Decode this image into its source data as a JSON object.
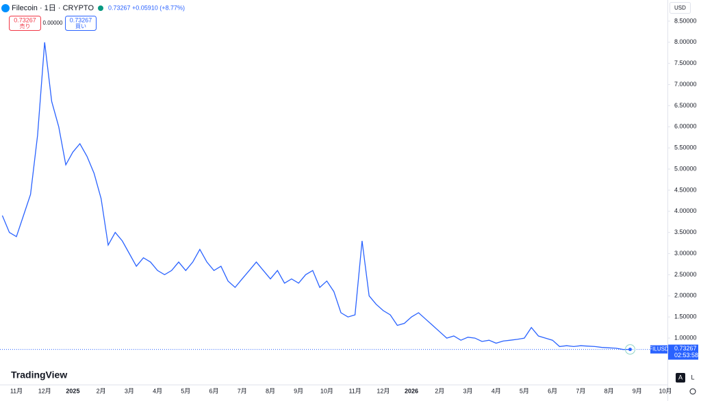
{
  "header": {
    "symbol": "Filecoin · 1日 · CRYPTO",
    "last": "0.73267",
    "change": "+0.05910 (+8.77%)",
    "sell_price": "0.73267",
    "sell_label": "売り",
    "spread": "0.00000",
    "buy_price": "0.73267",
    "buy_label": "買い",
    "currency": "USD",
    "ticker": "FILUSD",
    "price_tag": "0.73267",
    "countdown": "02:53:58",
    "logo": "TradingView",
    "auto_button": "A",
    "log_button": "L"
  },
  "chart_data": {
    "type": "line",
    "color": "#2962ff",
    "categories": [
      null,
      null,
      "11月",
      null,
      null,
      null,
      "12月",
      null,
      null,
      null,
      "2025",
      null,
      null,
      null,
      "2月",
      null,
      null,
      null,
      "3月",
      null,
      null,
      null,
      "4月",
      null,
      null,
      null,
      "5月",
      null,
      null,
      null,
      "6月",
      null,
      null,
      null,
      "7月",
      null,
      null,
      null,
      "8月",
      null,
      null,
      null,
      "9月",
      null,
      null,
      null,
      "10月",
      null,
      null,
      null,
      "11月",
      null,
      null,
      null,
      "12月",
      null,
      null,
      null,
      "2026",
      null,
      null,
      null,
      "2月",
      null,
      null,
      null,
      "3月",
      null,
      null,
      null,
      "4月",
      null,
      null,
      null,
      "5月",
      null,
      null,
      null,
      "6月",
      null,
      null,
      null,
      "7月",
      null,
      null,
      null,
      "8月",
      null,
      null,
      null,
      "9月",
      null,
      null,
      null,
      "10月"
    ],
    "values": [
      3.9,
      3.5,
      3.4,
      3.9,
      4.4,
      5.8,
      8.0,
      6.6,
      6.0,
      5.1,
      5.4,
      5.6,
      5.3,
      4.9,
      4.3,
      3.2,
      3.5,
      3.3,
      3.0,
      2.7,
      2.9,
      2.8,
      2.6,
      2.5,
      2.6,
      2.8,
      2.6,
      2.8,
      3.1,
      2.8,
      2.6,
      2.7,
      2.35,
      2.2,
      2.4,
      2.6,
      2.8,
      2.6,
      2.4,
      2.6,
      2.3,
      2.4,
      2.3,
      2.5,
      2.6,
      2.2,
      2.35,
      2.1,
      1.6,
      1.5,
      1.55,
      3.3,
      2.0,
      1.8,
      1.65,
      1.55,
      1.3,
      1.35,
      1.5,
      1.6,
      1.45,
      1.3,
      1.15,
      1.0,
      1.05,
      0.95,
      1.02,
      1.0,
      0.92,
      0.95,
      0.88,
      0.93,
      0.95,
      0.97,
      1.0,
      1.25,
      1.05,
      1.0,
      0.95,
      0.8,
      0.82,
      0.8,
      0.82,
      0.81,
      0.8,
      0.78,
      0.77,
      0.76,
      0.73,
      0.73267,
      null,
      null,
      null,
      null,
      null
    ],
    "ylim": [
      -0.1,
      9.0
    ],
    "yticks": [
      {
        "value": 1,
        "label": "1.00000"
      },
      {
        "value": 1.5,
        "label": "1.50000"
      },
      {
        "value": 2,
        "label": "2.00000"
      },
      {
        "value": 2.5,
        "label": "2.50000"
      },
      {
        "value": 3,
        "label": "3.00000"
      },
      {
        "value": 3.5,
        "label": "3.50000"
      },
      {
        "value": 4,
        "label": "4.00000"
      },
      {
        "value": 4.5,
        "label": "4.50000"
      },
      {
        "value": 5,
        "label": "5.00000"
      },
      {
        "value": 5.5,
        "label": "5.50000"
      },
      {
        "value": 6,
        "label": "6.00000"
      },
      {
        "value": 6.5,
        "label": "6.50000"
      },
      {
        "value": 7,
        "label": "7.00000"
      },
      {
        "value": 7.5,
        "label": "7.50000"
      },
      {
        "value": 8,
        "label": "8.00000"
      },
      {
        "value": 8.5,
        "label": "8.50000"
      }
    ],
    "last_price": 0.73267
  }
}
